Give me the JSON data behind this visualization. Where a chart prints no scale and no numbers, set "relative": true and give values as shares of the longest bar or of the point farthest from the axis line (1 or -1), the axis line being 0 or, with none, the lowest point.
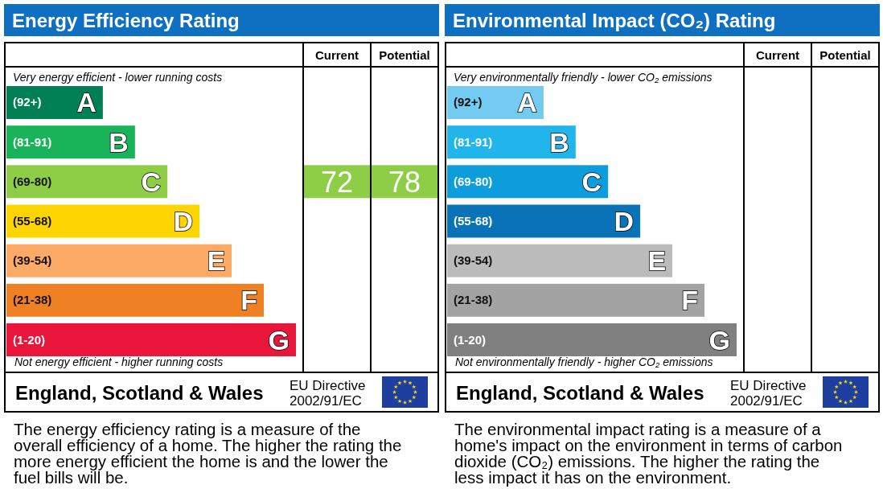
{
  "chart_data": [
    {
      "type": "bar",
      "orientation": "horizontal",
      "relative": true,
      "title": "Energy Efficiency Rating",
      "categories": [
        "A",
        "B",
        "C",
        "D",
        "E",
        "F",
        "G"
      ],
      "values": [
        0.333,
        0.444,
        0.556,
        0.667,
        0.778,
        0.889,
        1
      ],
      "colors": [
        "#008054",
        "#19b459",
        "#8dce46",
        "#ffd500",
        "#fcaa65",
        "#ef8023",
        "#e9153b"
      ],
      "annotations": [
        "(92+)",
        "(81-91)",
        "(69-80)",
        "(55-68)",
        "(39-54)",
        "(21-38)",
        "(1-20)",
        "Very energy efficient - lower running costs",
        "Not energy efficient - higher running costs",
        "Current",
        "Potential",
        "72",
        "78",
        "England, Scotland & Wales",
        "EU Directive 2002/91/EC",
        "The energy efficiency rating is a measure of the overall efficiency of a home. The higher the rating the more energy efficient the home is and the lower the fuel bills will be."
      ]
    },
    {
      "type": "bar",
      "orientation": "horizontal",
      "relative": true,
      "title": "Environmental Impact (CO₂) Rating",
      "categories": [
        "A",
        "B",
        "C",
        "D",
        "E",
        "F",
        "G"
      ],
      "values": [
        0.333,
        0.444,
        0.556,
        0.667,
        0.778,
        0.889,
        1
      ],
      "colors": [
        "#74cbf2",
        "#22b5ec",
        "#0d9ddb",
        "#0a72b6",
        "#bbbbbb",
        "#a3a3a3",
        "#808080"
      ],
      "annotations": [
        "(92+)",
        "(81-91)",
        "(69-80)",
        "(55-68)",
        "(39-54)",
        "(21-38)",
        "(1-20)",
        "Very environmentally friendly - lower CO₂ emissions",
        "Not environmentally friendly - higher CO₂ emissions",
        "Current",
        "Potential",
        "England, Scotland & Wales",
        "EU Directive 2002/91/EC",
        "The environmental impact rating is a measure of a home's impact on the environment in terms of carbon dioxide (CO₂) emissions. The higher the rating the less impact it has on the environment."
      ]
    }
  ]
}
